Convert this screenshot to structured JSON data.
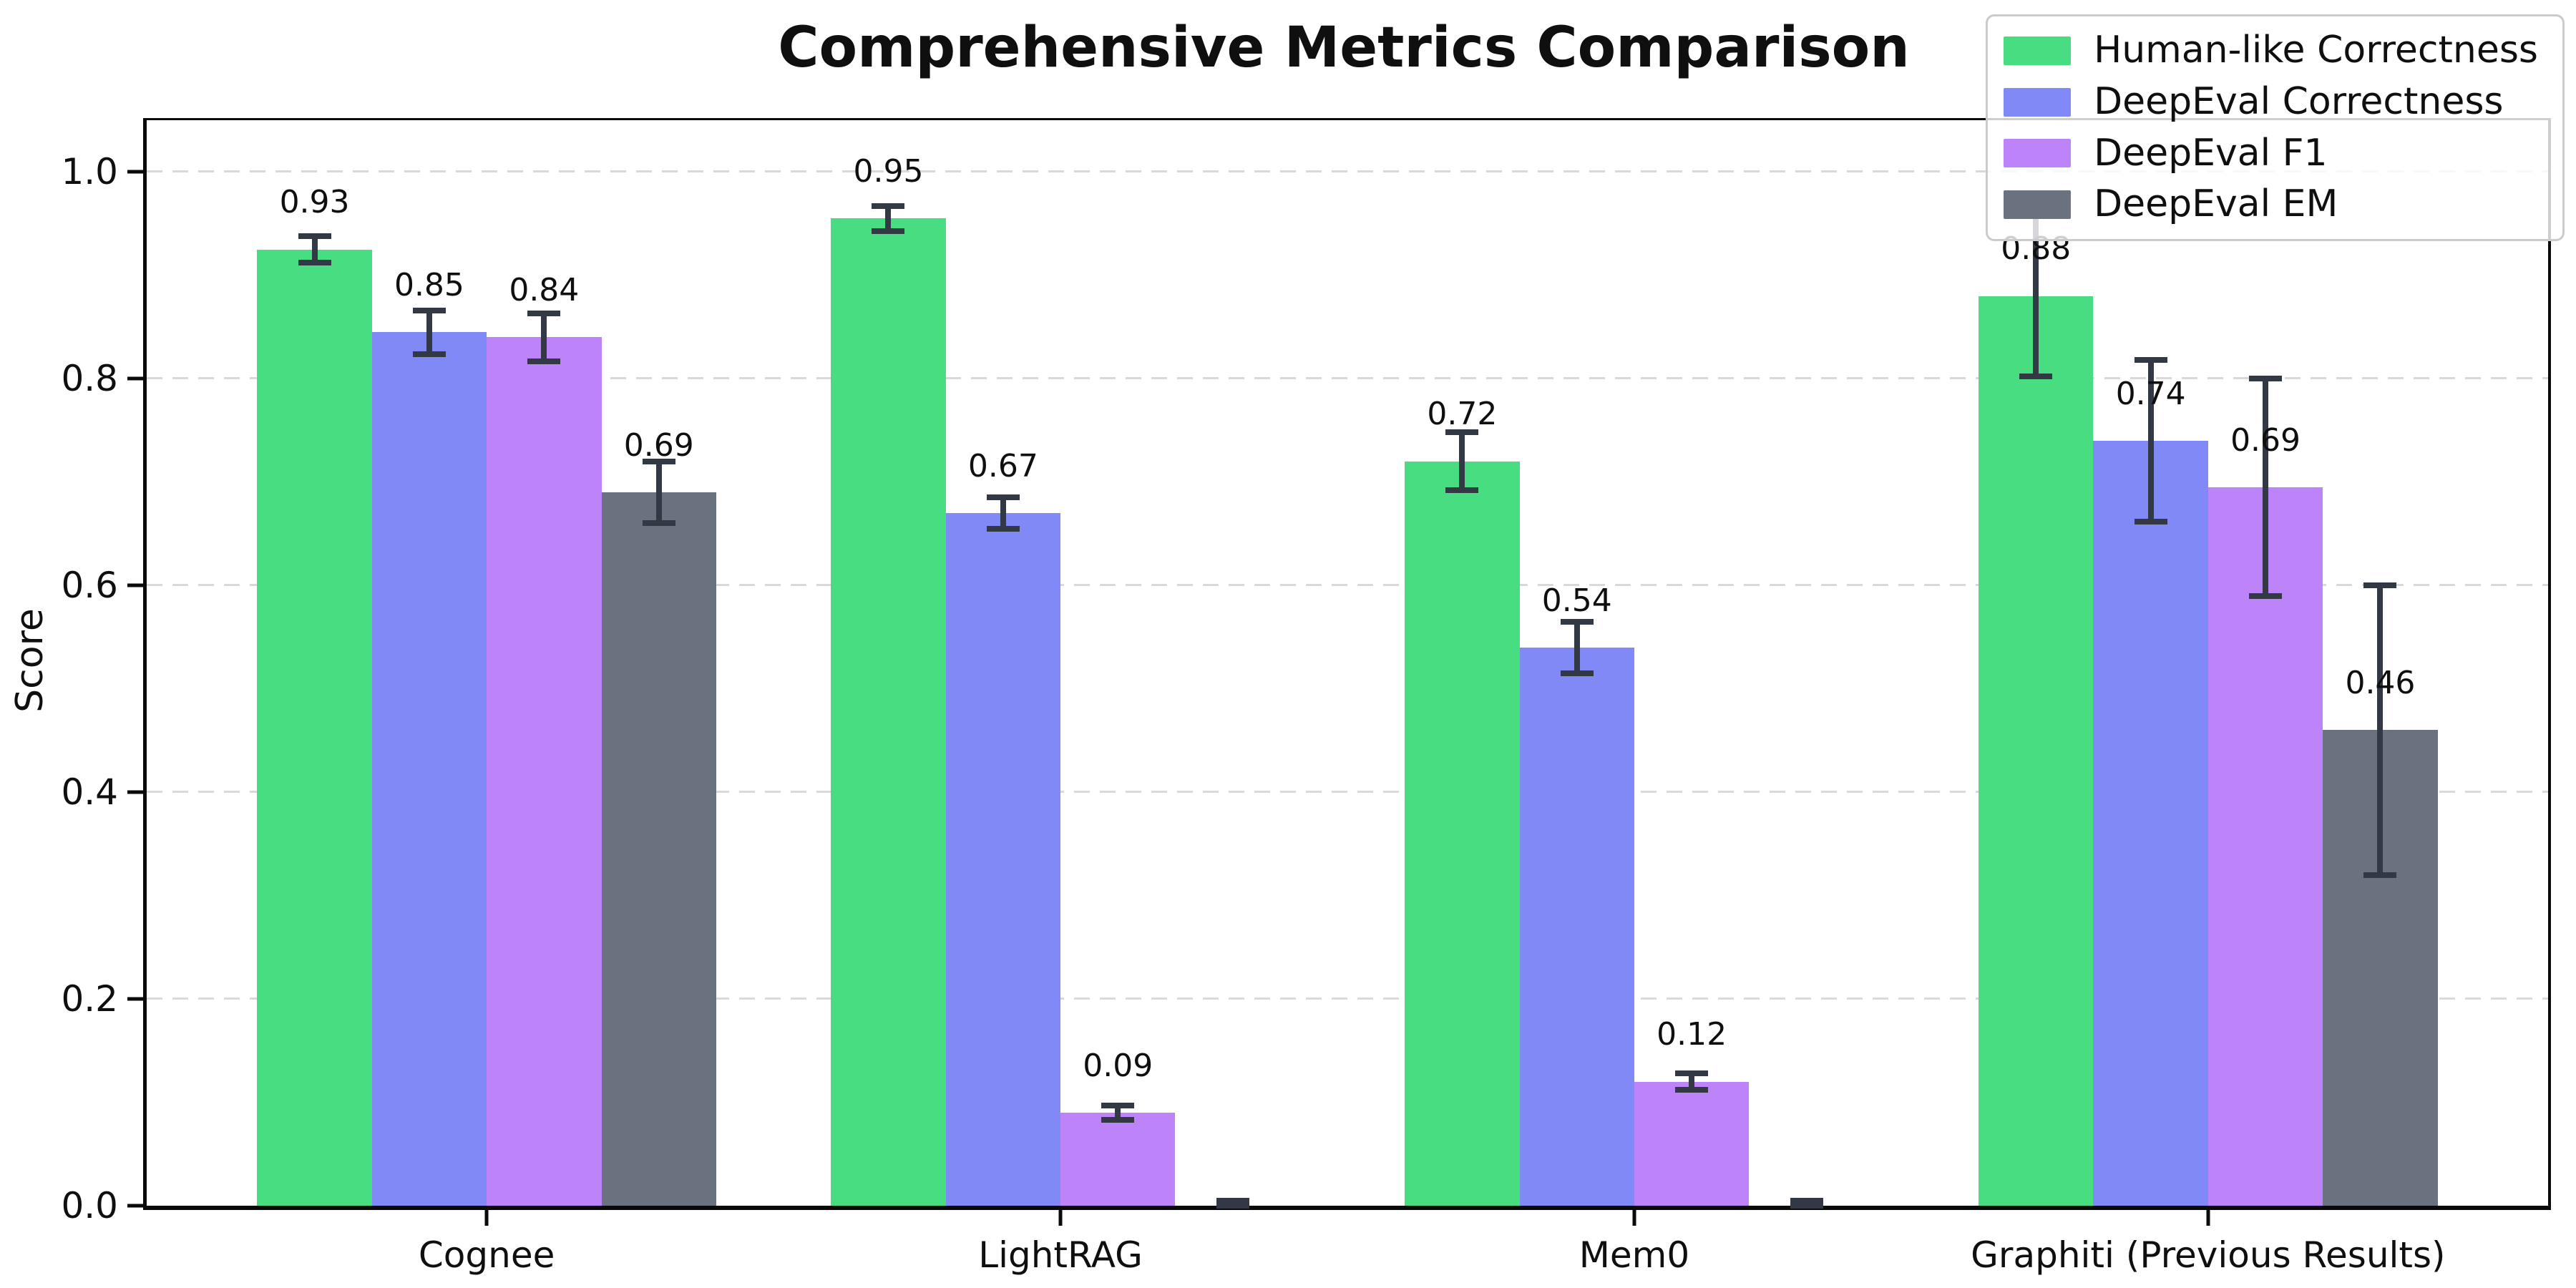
{
  "title": "Comprehensive Metrics Comparison",
  "chart_data": {
    "type": "bar",
    "title": "Comprehensive Metrics Comparison",
    "xlabel": "",
    "ylabel": "Score",
    "categories": [
      "Cognee",
      "LightRAG",
      "Mem0",
      "Graphiti (Previous Results)"
    ],
    "yticks": [
      "0.0",
      "0.2",
      "0.4",
      "0.6",
      "0.8",
      "1.0"
    ],
    "ylim": [
      0,
      1.05
    ],
    "xlim": [
      -0.5925,
      3.5925
    ],
    "bar_width": 0.2,
    "group_offsets": [
      -0.3,
      -0.1,
      0.1,
      0.3
    ],
    "grid": "dashed-horizontal",
    "legend_position": "upper-right",
    "error_color": "#323945",
    "series": [
      {
        "name": "Human-like Correctness",
        "color": "#47dd80",
        "values": [
          0.925,
          0.955,
          0.72,
          0.88
        ],
        "errors": [
          0.013,
          0.012,
          0.028,
          0.078
        ],
        "labels": [
          "0.93",
          "0.95",
          "0.72",
          "0.88"
        ]
      },
      {
        "name": "DeepEval Correctness",
        "color": "#8089f5",
        "values": [
          0.845,
          0.67,
          0.54,
          0.74
        ],
        "errors": [
          0.021,
          0.015,
          0.025,
          0.078
        ],
        "labels": [
          "0.85",
          "0.67",
          "0.54",
          "0.74"
        ]
      },
      {
        "name": "DeepEval F1",
        "color": "#bd84f9",
        "values": [
          0.84,
          0.09,
          0.12,
          0.695
        ],
        "errors": [
          0.023,
          0.007,
          0.008,
          0.105
        ],
        "labels": [
          "0.84",
          "0.09",
          "0.12",
          "0.69"
        ]
      },
      {
        "name": "DeepEval EM",
        "color": "#6a7280",
        "values": [
          0.69,
          0.0,
          0.0,
          0.46
        ],
        "errors": [
          0.03,
          0.005,
          0.005,
          0.14
        ],
        "labels": [
          "0.69",
          "",
          "",
          "0.46"
        ]
      }
    ]
  }
}
